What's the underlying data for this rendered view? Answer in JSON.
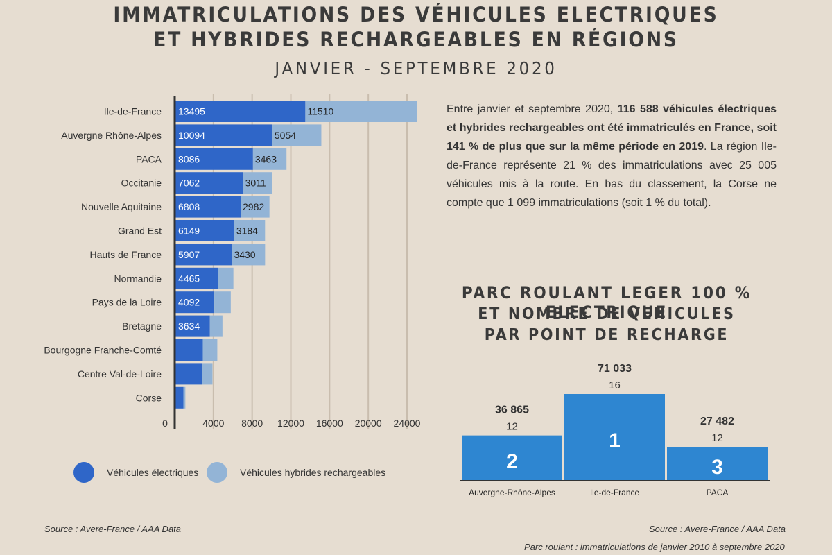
{
  "header": {
    "title_line1": "IMMATRICULATIONS DES VÉHICULES ELECTRIQUES",
    "title_line2": "ET HYBRIDES RECHARGEABLES EN RÉGIONS",
    "subtitle": "JANVIER - SEPTEMBRE 2020"
  },
  "summary": {
    "p1": "Entre janvier et septembre 2020, ",
    "bold": "116 588 véhicules électriques et hybrides rechargeables ont été immatriculés en France, soit 141 % de plus que sur la même période en 2019",
    "p2": ". La région Ile-de-France représente 21 % des immatriculations avec 25 005 véhicules mis à la route. En bas du classement, la Corse ne compte que 1 099 immatriculations (soit 1 % du total)."
  },
  "legend": {
    "electric": "Véhicules électriques",
    "hybrid": "Véhicules hybrides rechargeables"
  },
  "fleet": {
    "title_line1": "PARC ROULANT LEGER 100 % ELECTRIQUE",
    "title_line2": "ET NOMBRE DE VEHICULES",
    "title_line3": "PAR POINT DE RECHARGE"
  },
  "sources": {
    "left": "Source : Avere-France / AAA Data",
    "right": "Source : Avere-France / AAA Data",
    "note": "Parc roulant : immatriculations de janvier 2010 à septembre 2020"
  },
  "colors": {
    "electric": "#2f66c8",
    "hybrid": "#93b4d6",
    "fleet_bar": "#2e86d1",
    "grid": "#c9bdae",
    "axis": "#333333",
    "background": "#e6ddd1"
  },
  "chart_data": [
    {
      "type": "bar",
      "orientation": "horizontal",
      "stacked": true,
      "categories": [
        "Ile-de-France",
        "Auvergne Rhône-Alpes",
        "PACA",
        "Occitanie",
        "Nouvelle Aquitaine",
        "Grand Est",
        "Hauts de France",
        "Normandie",
        "Pays de la Loire",
        "Bretagne",
        "Bourgogne Franche-Comté",
        "Centre Val-de-Loire",
        "Corse"
      ],
      "series": [
        {
          "name": "Véhicules électriques",
          "values": [
            13495,
            10094,
            8086,
            7062,
            6808,
            6149,
            5907,
            4465,
            4092,
            3634,
            2900,
            2800,
            900
          ],
          "labels": [
            "13495",
            "10094",
            "8086",
            "7062",
            "6808",
            "6149",
            "5907",
            "4465",
            "4092",
            "3634",
            "",
            "",
            ""
          ]
        },
        {
          "name": "Véhicules hybrides rechargeables",
          "values": [
            11510,
            5054,
            3463,
            3011,
            2982,
            3184,
            3430,
            1600,
            1700,
            1300,
            1500,
            1100,
            200
          ],
          "labels": [
            "11510",
            "5054",
            "3463",
            "3011",
            "2982",
            "3184",
            "3430",
            "",
            "",
            "",
            "",
            "",
            ""
          ]
        }
      ],
      "xlim": [
        0,
        26000
      ],
      "xticks": [
        0,
        4000,
        8000,
        12000,
        16000,
        20000,
        24000
      ],
      "xtick_labels": [
        "0",
        "4000",
        "8000",
        "12000",
        "16000",
        "20000",
        "24000"
      ],
      "grid": true,
      "legend": "bottom"
    },
    {
      "type": "bar",
      "title": "PARC ROULANT LEGER 100 % ELECTRIQUE ET NOMBRE DE VEHICULES PAR POINT DE RECHARGE",
      "categories": [
        "Auvergne-Rhône-Alpes",
        "Ile-de-France",
        "PACA"
      ],
      "values": [
        36865,
        71033,
        27482
      ],
      "value_labels": [
        "36 865",
        "71 033",
        "27 482"
      ],
      "vehicles_per_charge_point": [
        "12",
        "16",
        "12"
      ],
      "ranks": [
        "2",
        "1",
        "3"
      ],
      "ylim": [
        0,
        80000
      ]
    }
  ]
}
